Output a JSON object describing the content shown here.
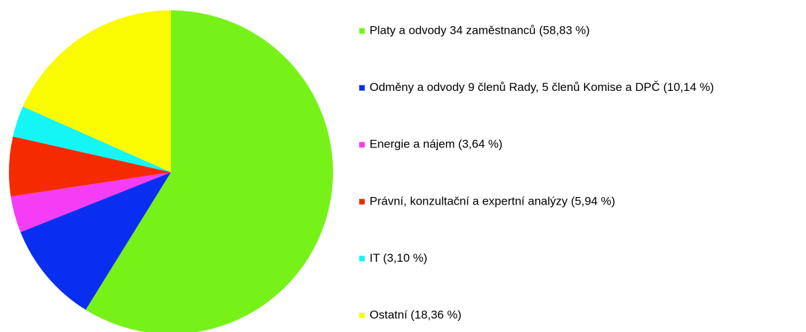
{
  "chart_data": {
    "type": "pie",
    "categories": [
      "Platy a odvody 34 zaměstnanců (58,83 %)",
      "Odměny a odvody 9 členů Rady, 5 členů Komise a DPČ (10,14 %)",
      "Energie a nájem (3,64 %)",
      "Právní, konzultační a expertní analýzy (5,94 %)",
      "IT (3,10 %)",
      "Ostatní (18,36 %)"
    ],
    "values": [
      58.83,
      10.14,
      3.64,
      5.94,
      3.1,
      18.36
    ],
    "colors": [
      "#77f218",
      "#0a2ef0",
      "#f53df5",
      "#f52a00",
      "#14f5f5",
      "#fafa00"
    ],
    "legend": "right"
  }
}
